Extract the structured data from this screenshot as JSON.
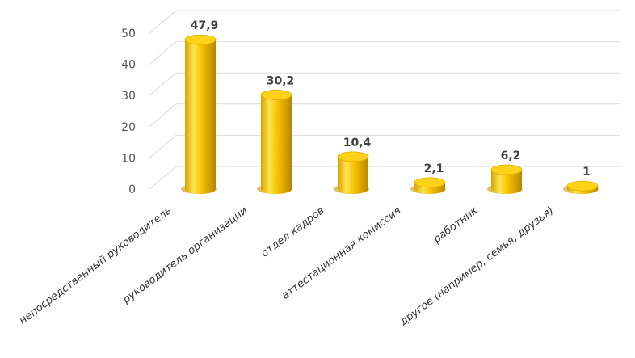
{
  "chart_data": {
    "type": "bar",
    "style": "3d-cylinder",
    "title": "",
    "xlabel": "",
    "ylabel": "",
    "ylim": [
      0,
      50
    ],
    "yticks": [
      0,
      10,
      20,
      30,
      40,
      50
    ],
    "ytick_labels": [
      "0",
      "10",
      "20",
      "30",
      "40",
      "50"
    ],
    "grid": true,
    "categories": [
      "непосредственный руководитель",
      "руководитель организации",
      "отдел кадров",
      "аттестационная комиссия",
      "работник",
      "другое (например, семья, друзья)"
    ],
    "values": [
      47.9,
      30.2,
      10.4,
      2.1,
      6.2,
      1
    ],
    "value_labels": [
      "47,9",
      "30,2",
      "10,4",
      "2,1",
      "6,2",
      "1"
    ],
    "colors": {
      "bar_light": "#ffe34d",
      "bar_main": "#f5c200",
      "bar_dark": "#c28f00",
      "top": "#ffd21a",
      "grid": "#d9d9d9"
    }
  }
}
